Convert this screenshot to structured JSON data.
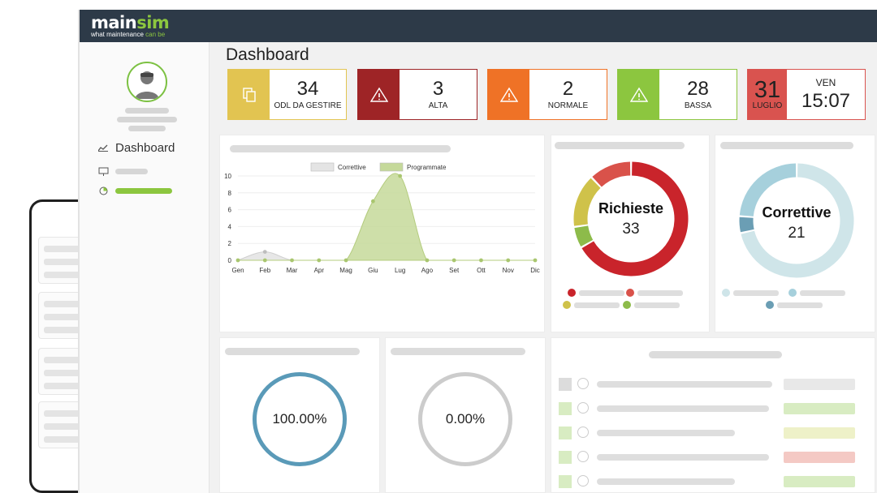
{
  "app": {
    "brand_main": "main",
    "brand_accent": "sim",
    "tagline_main": "what maintenance",
    "tagline_accent": "can be"
  },
  "page": {
    "title": "Dashboard"
  },
  "sidebar": {
    "items": [
      {
        "label": "Dashboard",
        "icon": "chart-icon"
      }
    ]
  },
  "kpis": [
    {
      "value": "34",
      "label": "ODL DA GESTIRE",
      "color": "#e2c451",
      "icon": "documents-icon"
    },
    {
      "value": "3",
      "label": "ALTA",
      "color": "#9e2426",
      "icon": "warning-icon"
    },
    {
      "value": "2",
      "label": "NORMALE",
      "color": "#ef7226",
      "icon": "warning-icon"
    },
    {
      "value": "28",
      "label": "BASSA",
      "color": "#8cc63f",
      "icon": "warning-icon"
    }
  ],
  "date": {
    "day": "31",
    "month": "LUGLIO",
    "weekday": "VEN",
    "time": "15:07",
    "color": "#d9534f"
  },
  "chart_data": {
    "type": "area",
    "categories": [
      "Gen",
      "Feb",
      "Mar",
      "Apr",
      "Mag",
      "Giu",
      "Lug",
      "Ago",
      "Set",
      "Ott",
      "Nov",
      "Dic"
    ],
    "series": [
      {
        "name": "Correttive",
        "values": [
          0,
          1,
          0,
          0,
          0,
          0,
          0,
          0,
          0,
          0,
          0,
          0
        ],
        "color": "#e4e4e4"
      },
      {
        "name": "Programmate",
        "values": [
          0,
          0,
          0,
          0,
          0,
          7,
          10,
          0,
          0,
          0,
          0,
          0
        ],
        "color": "#c5d99a"
      }
    ],
    "yticks": [
      "0",
      "2",
      "4",
      "6",
      "8",
      "10"
    ],
    "ylim": [
      0,
      10
    ],
    "legend": "top"
  },
  "donut_richieste": {
    "title": "Richieste",
    "value": "33",
    "segments": [
      {
        "value": 22,
        "color": "#c9242b"
      },
      {
        "value": 2,
        "color": "#8dbb4a"
      },
      {
        "value": 5,
        "color": "#cfc24a"
      },
      {
        "value": 4,
        "color": "#d9524a"
      }
    ]
  },
  "donut_correttive": {
    "title": "Correttive",
    "value": "21",
    "segments": [
      {
        "value": 15,
        "color": "#cfe5e9"
      },
      {
        "value": 1,
        "color": "#6b9eb4"
      },
      {
        "value": 5,
        "color": "#a6d0dc"
      }
    ]
  },
  "gauges": [
    {
      "value": "100.00%",
      "color": "#5a9ab8"
    },
    {
      "value": "0.00%",
      "color": "#cccccc"
    }
  ],
  "list_status_colors": [
    "#e8e8e8",
    "#d8ecc2",
    "#eef1c8",
    "#f4c9c4",
    "#d8ecc2"
  ]
}
